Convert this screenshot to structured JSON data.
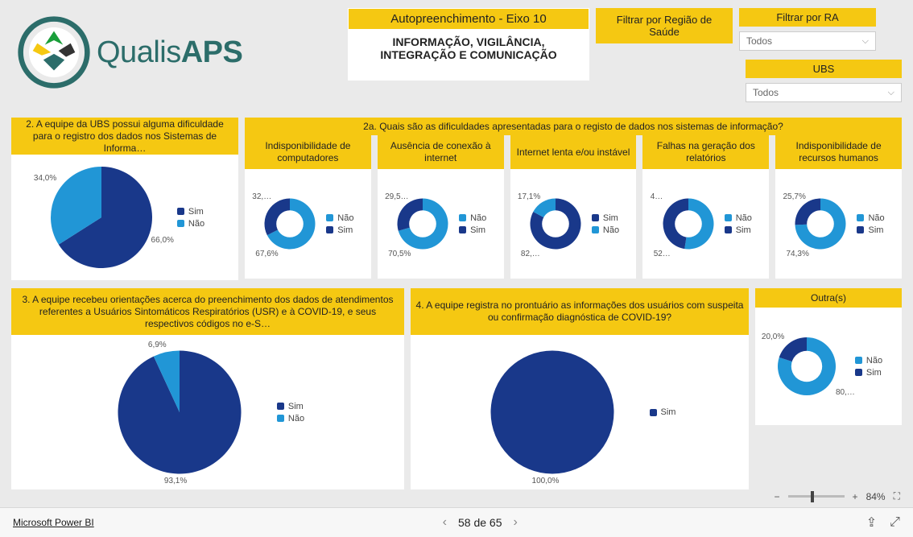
{
  "colors": {
    "accent": "#f5c812",
    "dark": "#19388a",
    "light": "#2196d6",
    "bg": "#eaeaea"
  },
  "header": {
    "logo_text_a": "Qualis",
    "logo_text_b": "APS",
    "title_hl": "Autopreenchimento - Eixo 10",
    "title_sub": "INFORMAÇÃO, VIGILÂNCIA, INTEGRAÇÃO E COMUNICAÇÃO"
  },
  "filters": {
    "regiao": {
      "label": "Filtrar por Região de Saúde"
    },
    "ra": {
      "label": "Filtrar por RA",
      "value": "Todos"
    },
    "ubs": {
      "label": "UBS",
      "value": "Todos"
    }
  },
  "q2": {
    "title": "2. A equipe da UBS possui alguma dificuldade para o registro dos dados nos Sistemas de Informa…",
    "type": "pie",
    "slices": [
      {
        "label": "Sim",
        "value": 66.0,
        "color": "#19388a"
      },
      {
        "label": "Não",
        "value": 34.0,
        "color": "#2196d6"
      }
    ],
    "pct_labels": [
      "34,0%",
      "66,0%"
    ]
  },
  "q2a_title": "2a. Quais são as dificuldades apresentadas para o registo de dados nos sistemas de informação?",
  "q2a": [
    {
      "title": "Indisponibilidade de computadores",
      "slices": [
        {
          "label": "Não",
          "value": 67.6,
          "color": "#2196d6"
        },
        {
          "label": "Sim",
          "value": 32.4,
          "color": "#19388a"
        }
      ],
      "pct_labels": [
        "32,…",
        "67,6%"
      ]
    },
    {
      "title": "Ausência de conexão à internet",
      "slices": [
        {
          "label": "Não",
          "value": 70.5,
          "color": "#2196d6"
        },
        {
          "label": "Sim",
          "value": 29.5,
          "color": "#19388a"
        }
      ],
      "pct_labels": [
        "29,5…",
        "70,5%"
      ]
    },
    {
      "title": "Internet lenta e/ou instável",
      "slices": [
        {
          "label": "Sim",
          "value": 82.9,
          "color": "#19388a"
        },
        {
          "label": "Não",
          "value": 17.1,
          "color": "#2196d6"
        }
      ],
      "pct_labels": [
        "17,1%",
        "82,…"
      ]
    },
    {
      "title": "Falhas na geração dos relatórios",
      "slices": [
        {
          "label": "Não",
          "value": 52.4,
          "color": "#2196d6"
        },
        {
          "label": "Sim",
          "value": 47.6,
          "color": "#19388a"
        }
      ],
      "pct_labels": [
        "4…",
        "52…"
      ]
    },
    {
      "title": "Indisponibilidade de recursos humanos",
      "slices": [
        {
          "label": "Não",
          "value": 74.3,
          "color": "#2196d6"
        },
        {
          "label": "Sim",
          "value": 25.7,
          "color": "#19388a"
        }
      ],
      "pct_labels": [
        "25,7%",
        "74,3%"
      ]
    }
  ],
  "q3": {
    "title": "3. A equipe recebeu orientações acerca do preenchimento dos dados de atendimentos referentes a Usuários Sintomáticos Respiratórios (USR) e à COVID-19, e seus respectivos códigos no e-S…",
    "slices": [
      {
        "label": "Sim",
        "value": 93.1,
        "color": "#19388a"
      },
      {
        "label": "Não",
        "value": 6.9,
        "color": "#2196d6"
      }
    ],
    "pct_labels": [
      "6,9%",
      "93,1%"
    ]
  },
  "q4": {
    "title": "4. A equipe registra no prontuário as informações dos usuários com suspeita ou confirmação diagnóstica de COVID-19?",
    "slices": [
      {
        "label": "Sim",
        "value": 100.0,
        "color": "#19388a"
      }
    ],
    "pct_labels": [
      "100,0%"
    ]
  },
  "q_outras": {
    "title": "Outra(s)",
    "slices": [
      {
        "label": "Não",
        "value": 80.0,
        "color": "#2196d6"
      },
      {
        "label": "Sim",
        "value": 20.0,
        "color": "#19388a"
      }
    ],
    "pct_labels": [
      "20,0%",
      "80,…"
    ]
  },
  "footer": {
    "link": "Microsoft Power BI",
    "page": "58 de 65",
    "zoom": "84%"
  }
}
